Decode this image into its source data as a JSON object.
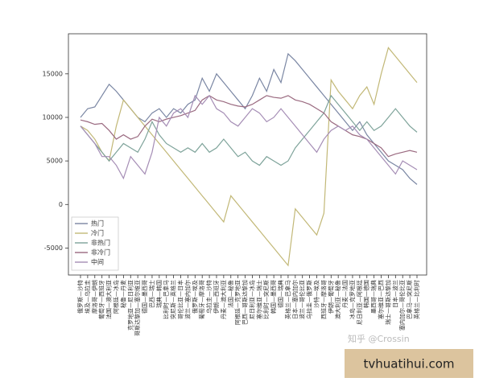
{
  "chart_data": {
    "type": "line",
    "categories": [
      "俄罗斯—沙特",
      "埃及—乌拉圭",
      "摩洛哥—伊朗",
      "葡萄牙—西班牙",
      "法国—澳大利亚",
      "阿根廷—冰岛",
      "秘鲁—丹麦",
      "克罗地亚—尼日利亚",
      "哥斯达黎加—塞尔维亚",
      "德国—墨西哥",
      "巴西—瑞士",
      "瑞典—韩国",
      "比利时—巴拿马",
      "突尼斯—英格兰",
      "哥伦比亚—日本",
      "波兰—塞内加尔",
      "俄罗斯—埃及",
      "葡萄牙—摩洛哥",
      "乌拉圭—沙特",
      "伊朗—西班牙",
      "丹麦—澳大利亚",
      "法国—秘鲁",
      "阿根廷—克罗地亚",
      "巴西—哥斯达黎加",
      "尼日利亚—冰岛",
      "塞尔维亚—瑞士",
      "比利时—突尼斯",
      "韩国—墨西哥",
      "德国—瑞典",
      "英格兰—巴拿马",
      "日本—塞内加尔",
      "波兰—哥伦比亚",
      "乌拉圭—俄罗斯",
      "沙特—埃及",
      "西班牙—摩洛哥",
      "伊朗—葡萄牙",
      "澳大利亚—秘鲁",
      "丹麦—法国",
      "冰岛—克罗地亚",
      "尼日利亚—阿根廷",
      "韩国—德国",
      "墨西哥—瑞典",
      "塞尔维亚—巴西",
      "瑞士—哥斯达黎加",
      "日本—波兰",
      "塞内加尔—哥伦比亚",
      "巴拿马—突尼斯",
      "英格兰—比利时"
    ],
    "series": [
      {
        "name": "热门",
        "color": "#7a86a3",
        "values": [
          10000,
          11000,
          11200,
          12500,
          13800,
          13000,
          12000,
          11000,
          10000,
          9500,
          10500,
          11000,
          10000,
          11000,
          10500,
          11500,
          12000,
          14500,
          13000,
          15000,
          14000,
          13000,
          12000,
          11000,
          12500,
          14500,
          13000,
          15500,
          14000,
          17300,
          16500,
          15500,
          14500,
          13500,
          12500,
          11500,
          10500,
          9500,
          8500,
          9500,
          8000,
          7000,
          6000,
          5000,
          4500,
          4000,
          3000,
          2300
        ]
      },
      {
        "name": "冷门",
        "color": "#c2b877",
        "values": [
          9000,
          8500,
          7500,
          6000,
          5000,
          9000,
          12000,
          11000,
          10000,
          9000,
          8000,
          7000,
          6000,
          5000,
          4000,
          3000,
          2000,
          1000,
          0,
          -1000,
          -2000,
          1000,
          0,
          -1000,
          -2000,
          -3000,
          -4000,
          -5000,
          -6000,
          -7000,
          -500,
          -1500,
          -2500,
          -3500,
          -1000,
          14300,
          13000,
          12000,
          11000,
          12500,
          13500,
          11500,
          15000,
          18000,
          17000,
          16000,
          15000,
          14000
        ]
      },
      {
        "name": "非热门",
        "color": "#7ea39a",
        "values": [
          9000,
          8000,
          7000,
          6000,
          5000,
          6000,
          7000,
          6500,
          6000,
          7500,
          9500,
          8000,
          7000,
          6500,
          6000,
          6500,
          6000,
          7000,
          6000,
          6500,
          7500,
          6500,
          5500,
          6000,
          5000,
          4500,
          5500,
          5000,
          4500,
          5000,
          6500,
          7500,
          8500,
          9500,
          10500,
          12500,
          11500,
          10500,
          9500,
          8500,
          9500,
          8500,
          9000,
          10000,
          11000,
          10000,
          9000,
          8300
        ]
      },
      {
        "name": "非冷门",
        "color": "#9a6a80",
        "values": [
          9700,
          9500,
          9200,
          9300,
          8500,
          7500,
          8000,
          7500,
          7800,
          9000,
          9800,
          9500,
          9800,
          10000,
          10200,
          10500,
          10800,
          12000,
          12500,
          12000,
          11800,
          11500,
          11300,
          11200,
          11500,
          12000,
          12500,
          12300,
          12200,
          12500,
          12000,
          11800,
          11500,
          11000,
          10500,
          9500,
          9000,
          8500,
          8000,
          7800,
          7500,
          7000,
          6500,
          5500,
          5800,
          6000,
          6200,
          6000
        ]
      },
      {
        "name": "中间",
        "color": "#a58db5",
        "values": [
          9000,
          8000,
          7000,
          5500,
          5500,
          4500,
          3000,
          5500,
          4500,
          3500,
          6000,
          10000,
          9000,
          10500,
          11000,
          10000,
          12500,
          11500,
          12500,
          11000,
          10500,
          9500,
          9000,
          10000,
          11000,
          10500,
          9500,
          10000,
          11000,
          10000,
          9000,
          8000,
          7000,
          6000,
          7500,
          8500,
          9000,
          8500,
          9000,
          8000,
          7500,
          6500,
          5500,
          4500,
          3500,
          5000,
          4500,
          4000
        ]
      }
    ],
    "ylim": [
      -8100,
      19600
    ],
    "yticks": [
      -5000,
      0,
      5000,
      10000,
      15000
    ],
    "legend": "lower left"
  },
  "watermark": "知乎 @Crossin",
  "badge": "tvhuatihui.com"
}
